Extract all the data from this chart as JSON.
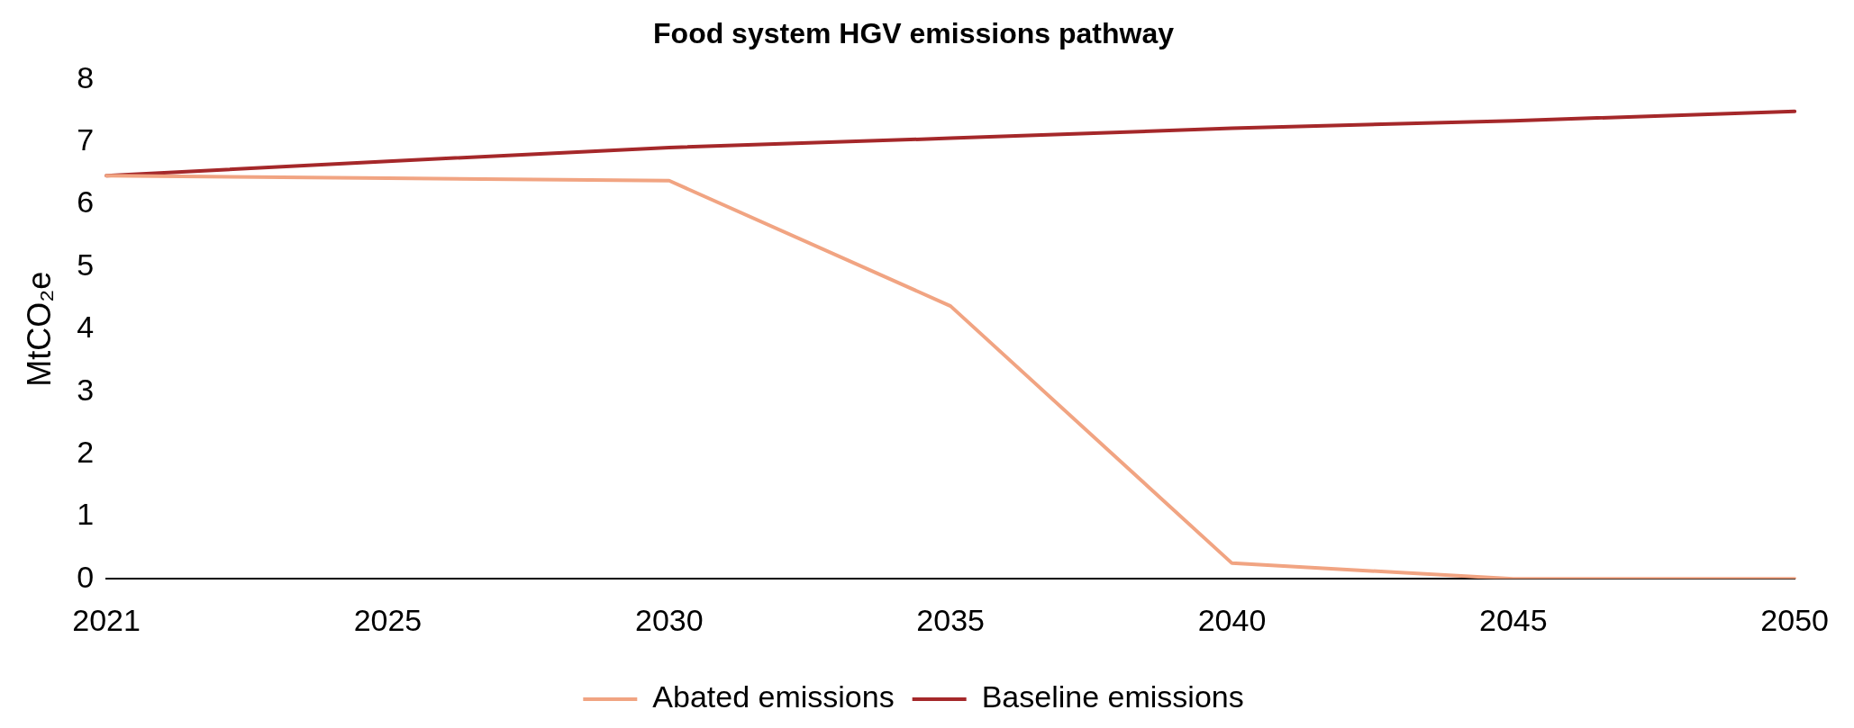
{
  "chart_data": {
    "type": "line",
    "title": "Food system HGV emissions pathway",
    "ylabel": "MtCO₂e",
    "categories": [
      "2021",
      "2025",
      "2030",
      "2035",
      "2040",
      "2045",
      "2050"
    ],
    "series": [
      {
        "name": "Abated emissions",
        "color": "#f1a482",
        "values": [
          6.46,
          6.42,
          6.38,
          4.37,
          0.25,
          0,
          0
        ]
      },
      {
        "name": "Baseline emissions",
        "color": "#a5282a",
        "values": [
          6.46,
          6.69,
          6.91,
          7.06,
          7.22,
          7.34,
          7.49
        ]
      }
    ],
    "ylim": [
      0,
      8
    ],
    "yticks": [
      0,
      1,
      2,
      3,
      4,
      5,
      6,
      7,
      8
    ],
    "grid": false,
    "legend": "bottom",
    "marker": "none",
    "line_style": "solid"
  }
}
